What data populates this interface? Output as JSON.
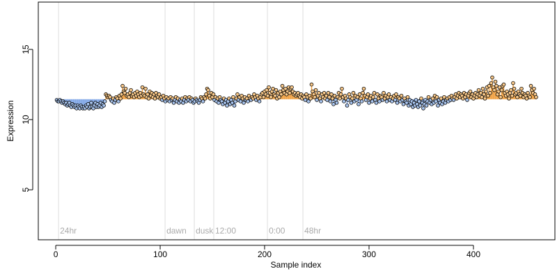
{
  "chart_data": {
    "type": "scatter",
    "x_label": "Sample index",
    "y_label": "Expression",
    "xlim": [
      -16.7,
      478
    ],
    "ylim": [
      1.44,
      18.37
    ],
    "xticks": [
      0,
      100,
      200,
      300,
      400
    ],
    "yticks": [
      5,
      10,
      15
    ],
    "baseline": 11.45,
    "above_color": "#f0a040",
    "below_color": "#7fa6e6",
    "point_above_color": "#f8c88a",
    "point_below_color": "#a8c4ee",
    "annotations": [
      {
        "x": 2.7,
        "label": "24hr"
      },
      {
        "x": 104.7,
        "label": "dawn"
      },
      {
        "x": 132.7,
        "label": "dusk"
      },
      {
        "x": 151.3,
        "label": "12:00"
      },
      {
        "x": 202.7,
        "label": "0:00"
      },
      {
        "x": 236.7,
        "label": "48hr"
      }
    ],
    "x": [
      1,
      2,
      3,
      4,
      5,
      6,
      7,
      8,
      9,
      10,
      11,
      12,
      13,
      14,
      15,
      16,
      17,
      18,
      19,
      20,
      21,
      22,
      23,
      24,
      25,
      26,
      27,
      28,
      29,
      30,
      31,
      32,
      33,
      34,
      35,
      36,
      37,
      38,
      39,
      40,
      41,
      42,
      43,
      44,
      45,
      46,
      47,
      48,
      49,
      50,
      51,
      52,
      53,
      54,
      55,
      56,
      57,
      58,
      59,
      60,
      61,
      62,
      63,
      64,
      65,
      66,
      67,
      68,
      69,
      70,
      71,
      72,
      73,
      74,
      75,
      76,
      77,
      78,
      79,
      80,
      81,
      82,
      83,
      84,
      85,
      86,
      87,
      88,
      89,
      90,
      91,
      92,
      93,
      94,
      95,
      96,
      97,
      98,
      99,
      100,
      101,
      102,
      103,
      104,
      105,
      106,
      107,
      108,
      109,
      110,
      111,
      112,
      113,
      114,
      115,
      116,
      117,
      118,
      119,
      120,
      121,
      122,
      123,
      124,
      125,
      126,
      127,
      128,
      129,
      130,
      131,
      132,
      133,
      134,
      135,
      136,
      137,
      138,
      139,
      140,
      141,
      142,
      143,
      144,
      145,
      146,
      147,
      148,
      149,
      150,
      151,
      152,
      153,
      154,
      155,
      156,
      157,
      158,
      159,
      160,
      161,
      162,
      163,
      164,
      165,
      166,
      167,
      168,
      169,
      170,
      171,
      172,
      173,
      174,
      175,
      176,
      177,
      178,
      179,
      180,
      181,
      182,
      183,
      184,
      185,
      186,
      187,
      188,
      189,
      190,
      191,
      192,
      193,
      194,
      195,
      196,
      197,
      198,
      199,
      200,
      201,
      202,
      203,
      204,
      205,
      206,
      207,
      208,
      209,
      210,
      211,
      212,
      213,
      214,
      215,
      216,
      217,
      218,
      219,
      220,
      221,
      222,
      223,
      224,
      225,
      226,
      227,
      228,
      229,
      230,
      231,
      232,
      233,
      234,
      235,
      236,
      237,
      238,
      239,
      240,
      241,
      242,
      243,
      244,
      245,
      246,
      247,
      248,
      249,
      250,
      251,
      252,
      253,
      254,
      255,
      256,
      257,
      258,
      259,
      260,
      261,
      262,
      263,
      264,
      265,
      266,
      267,
      268,
      269,
      270,
      271,
      272,
      273,
      274,
      275,
      276,
      277,
      278,
      279,
      280,
      281,
      282,
      283,
      284,
      285,
      286,
      287,
      288,
      289,
      290,
      291,
      292,
      293,
      294,
      295,
      296,
      297,
      298,
      299,
      300,
      301,
      302,
      303,
      304,
      305,
      306,
      307,
      308,
      309,
      310,
      311,
      312,
      313,
      314,
      315,
      316,
      317,
      318,
      319,
      320,
      321,
      322,
      323,
      324,
      325,
      326,
      327,
      328,
      329,
      330,
      331,
      332,
      333,
      334,
      335,
      336,
      337,
      338,
      339,
      340,
      341,
      342,
      343,
      344,
      345,
      346,
      347,
      348,
      349,
      350,
      351,
      352,
      353,
      354,
      355,
      356,
      357,
      358,
      359,
      360,
      361,
      362,
      363,
      364,
      365,
      366,
      367,
      368,
      369,
      370,
      371,
      372,
      373,
      374,
      375,
      376,
      377,
      378,
      379,
      380,
      381,
      382,
      383,
      384,
      385,
      386,
      387,
      388,
      389,
      390,
      391,
      392,
      393,
      394,
      395,
      396,
      397,
      398,
      399,
      400,
      401,
      402,
      403,
      404,
      405,
      406,
      407,
      408,
      409,
      410,
      411,
      412,
      413,
      414,
      415,
      416,
      417,
      418,
      419,
      420,
      421,
      422,
      423,
      424,
      425,
      426,
      427,
      428,
      429,
      430,
      431,
      432,
      433,
      434,
      435,
      436,
      437,
      438,
      439,
      440,
      441,
      442,
      443,
      444,
      445,
      446,
      447,
      448,
      449,
      450,
      451,
      452,
      453,
      454,
      455,
      456,
      457,
      458,
      459,
      460
    ],
    "values": [
      11.4,
      11.3,
      11.3,
      11.4,
      11.3,
      11.2,
      11.3,
      11.2,
      11.1,
      11.2,
      11.0,
      11.1,
      11.2,
      11.0,
      10.9,
      11.1,
      11.0,
      10.9,
      11.0,
      10.8,
      11.0,
      10.9,
      10.8,
      11.0,
      10.9,
      10.8,
      10.9,
      10.8,
      11.0,
      10.9,
      11.1,
      10.8,
      10.9,
      11.2,
      10.9,
      10.8,
      11.0,
      11.2,
      10.9,
      11.1,
      10.9,
      11.0,
      11.2,
      10.9,
      11.1,
      11.0,
      11.3,
      11.8,
      11.7,
      11.6,
      11.7,
      11.6,
      11.4,
      11.3,
      11.5,
      11.2,
      11.4,
      11.6,
      11.5,
      11.3,
      11.7,
      11.5,
      11.8,
      12.4,
      12.0,
      11.9,
      12.2,
      11.7,
      11.8,
      11.6,
      11.9,
      12.1,
      11.7,
      11.8,
      11.6,
      11.9,
      11.7,
      12.0,
      11.8,
      11.6,
      11.9,
      11.7,
      12.3,
      11.8,
      11.7,
      12.2,
      11.6,
      11.8,
      11.5,
      12.0,
      11.7,
      11.9,
      11.6,
      11.8,
      11.5,
      11.9,
      11.7,
      11.6,
      11.8,
      11.5,
      11.6,
      11.4,
      11.7,
      11.5,
      11.3,
      11.6,
      11.4,
      11.5,
      11.3,
      11.6,
      11.4,
      11.5,
      11.2,
      11.4,
      11.6,
      11.3,
      11.5,
      11.2,
      11.4,
      11.3,
      11.5,
      11.2,
      11.4,
      11.6,
      11.3,
      11.5,
      11.4,
      11.6,
      11.3,
      11.5,
      11.4,
      11.2,
      11.3,
      11.5,
      11.4,
      11.3,
      11.2,
      11.4,
      11.6,
      11.5,
      11.3,
      11.6,
      11.5,
      11.8,
      12.2,
      12.1,
      11.7,
      11.5,
      11.9,
      11.6,
      11.8,
      11.4,
      11.6,
      11.3,
      11.5,
      11.2,
      11.6,
      11.4,
      11.3,
      11.1,
      11.5,
      11.2,
      11.4,
      11.0,
      11.3,
      11.5,
      11.1,
      11.4,
      11.2,
      11.6,
      11.0,
      11.3,
      11.5,
      11.8,
      11.4,
      11.6,
      11.3,
      11.7,
      11.5,
      11.2,
      11.6,
      11.4,
      11.5,
      11.3,
      11.7,
      11.5,
      11.4,
      11.6,
      11.5,
      11.8,
      11.6,
      11.4,
      11.7,
      11.5,
      11.3,
      11.6,
      11.8,
      11.9,
      11.6,
      12.0,
      11.8,
      12.1,
      11.7,
      12.3,
      11.9,
      11.6,
      12.0,
      12.2,
      11.8,
      11.7,
      12.1,
      11.5,
      11.9,
      11.6,
      12.0,
      11.8,
      12.4,
      12.1,
      11.9,
      12.2,
      11.8,
      12.0,
      12.3,
      11.9,
      12.2,
      12.3,
      12.0,
      11.8,
      11.9,
      11.7,
      11.8,
      11.9,
      11.7,
      11.6,
      11.8,
      11.5,
      11.7,
      11.6,
      11.4,
      11.8,
      11.6,
      11.3,
      11.7,
      11.5,
      12.5,
      12.0,
      11.8,
      11.6,
      12.1,
      11.4,
      11.7,
      11.9,
      11.5,
      11.3,
      11.8,
      11.6,
      11.9,
      11.5,
      11.7,
      11.4,
      11.9,
      11.6,
      11.3,
      11.8,
      11.5,
      11.1,
      11.7,
      11.4,
      11.2,
      11.6,
      11.9,
      11.5,
      11.8,
      12.2,
      11.6,
      11.3,
      11.7,
      11.5,
      11.0,
      11.4,
      11.8,
      11.6,
      11.2,
      11.5,
      11.9,
      11.3,
      11.7,
      11.4,
      11.6,
      11.1,
      11.8,
      11.5,
      11.3,
      11.9,
      12.2,
      11.7,
      11.4,
      11.6,
      11.8,
      11.2,
      11.5,
      11.7,
      11.3,
      11.6,
      11.9,
      11.4,
      11.2,
      11.8,
      11.5,
      11.3,
      11.7,
      11.6,
      11.4,
      11.9,
      11.5,
      11.7,
      11.3,
      11.6,
      11.8,
      11.4,
      11.6,
      11.3,
      11.5,
      11.7,
      11.4,
      11.8,
      11.2,
      11.6,
      11.5,
      11.3,
      11.7,
      11.4,
      11.1,
      11.5,
      11.3,
      11.2,
      11.6,
      11.0,
      11.4,
      11.1,
      11.3,
      10.9,
      11.2,
      11.0,
      11.4,
      11.1,
      10.9,
      11.3,
      11.0,
      11.5,
      11.2,
      10.8,
      11.1,
      11.4,
      11.0,
      11.3,
      11.6,
      11.2,
      11.4,
      11.1,
      11.5,
      11.2,
      11.7,
      11.3,
      11.6,
      11.0,
      11.4,
      11.2,
      11.5,
      11.1,
      11.3,
      11.6,
      11.2,
      11.4,
      11.5,
      11.3,
      11.6,
      11.4,
      11.7,
      11.5,
      11.4,
      11.6,
      11.8,
      11.5,
      11.7,
      11.9,
      11.6,
      11.8,
      11.7,
      11.5,
      11.9,
      11.6,
      11.8,
      11.4,
      11.7,
      11.9,
      12.0,
      11.6,
      11.8,
      11.5,
      11.7,
      11.9,
      11.6,
      11.8,
      12.1,
      11.7,
      11.9,
      11.6,
      12.2,
      11.8,
      11.5,
      12.0,
      12.3,
      11.7,
      12.4,
      11.9,
      12.6,
      13.0,
      12.3,
      12.1,
      12.7,
      12.4,
      11.8,
      12.0,
      12.3,
      11.6,
      12.1,
      12.4,
      12.5,
      11.9,
      11.7,
      12.0,
      11.8,
      11.5,
      11.9,
      12.1,
      11.7,
      12.6,
      12.2,
      11.8,
      11.9,
      11.6,
      12.0,
      11.8,
      11.7,
      12.2,
      11.9,
      11.6,
      11.8,
      11.7,
      11.5,
      11.9,
      11.7,
      11.6,
      12.4,
      12.1,
      11.9,
      12.2,
      11.8,
      11.6
    ]
  }
}
